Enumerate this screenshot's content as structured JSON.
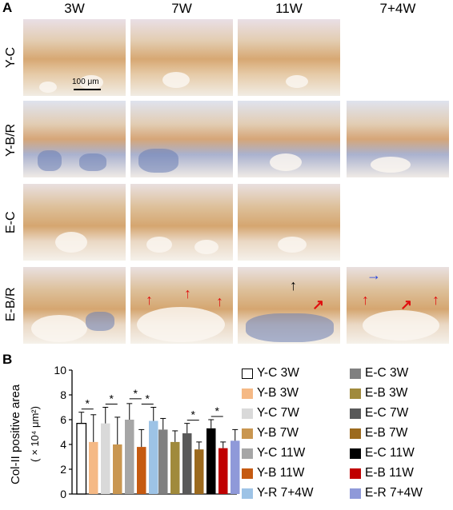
{
  "panel_a_label": "A",
  "panel_b_label": "B",
  "columns": [
    "3W",
    "7W",
    "11W",
    "7+4W"
  ],
  "rows": [
    "Y-C",
    "Y-B/R",
    "E-C",
    "E-B/R"
  ],
  "scale_bar": "100 μm",
  "chart_data": {
    "type": "bar",
    "ylabel": "Col-II positive area",
    "ylabel_units": "(×10⁴ μm²)",
    "ylim": [
      0,
      10
    ],
    "yticks": [
      "0",
      "2",
      "4",
      "6",
      "8",
      "10"
    ],
    "significance_marker": "*",
    "series": [
      {
        "name": "Y-C 3W",
        "color": "#ffffff",
        "edge": "#000000",
        "value": 5.7,
        "error": 0.9
      },
      {
        "name": "Y-B 3W",
        "color": "#f5b985",
        "value": 4.2,
        "error": 2.2
      },
      {
        "name": "Y-C 7W",
        "color": "#d9d9d9",
        "value": 5.7,
        "error": 1.3
      },
      {
        "name": "Y-B 7W",
        "color": "#c99650",
        "value": 4.0,
        "error": 2.2
      },
      {
        "name": "Y-C 11W",
        "color": "#a6a6a6",
        "value": 6.0,
        "error": 1.3
      },
      {
        "name": "Y-B 11W",
        "color": "#c55a11",
        "value": 3.8,
        "error": 1.4
      },
      {
        "name": "Y-R 7+4W",
        "color": "#9dc3e6",
        "value": 5.9,
        "error": 1.1
      },
      {
        "name": "E-C 3W",
        "color": "#808080",
        "value": 5.2,
        "error": 0.9
      },
      {
        "name": "E-B 3W",
        "color": "#a08a3c",
        "value": 4.2,
        "error": 0.9
      },
      {
        "name": "E-C 7W",
        "color": "#595959",
        "value": 4.9,
        "error": 0.8
      },
      {
        "name": "E-B 7W",
        "color": "#9c6a1e",
        "value": 3.6,
        "error": 0.6
      },
      {
        "name": "E-C 11W",
        "color": "#000000",
        "value": 5.3,
        "error": 0.7
      },
      {
        "name": "E-B 11W",
        "color": "#c00000",
        "value": 3.7,
        "error": 0.5
      },
      {
        "name": "E-R 7+4W",
        "color": "#8f99d9",
        "value": 4.3,
        "error": 0.9
      }
    ],
    "significance_pairs": [
      [
        0,
        1
      ],
      [
        2,
        3
      ],
      [
        4,
        5
      ],
      [
        5,
        6
      ],
      [
        9,
        10
      ],
      [
        11,
        12
      ]
    ]
  }
}
